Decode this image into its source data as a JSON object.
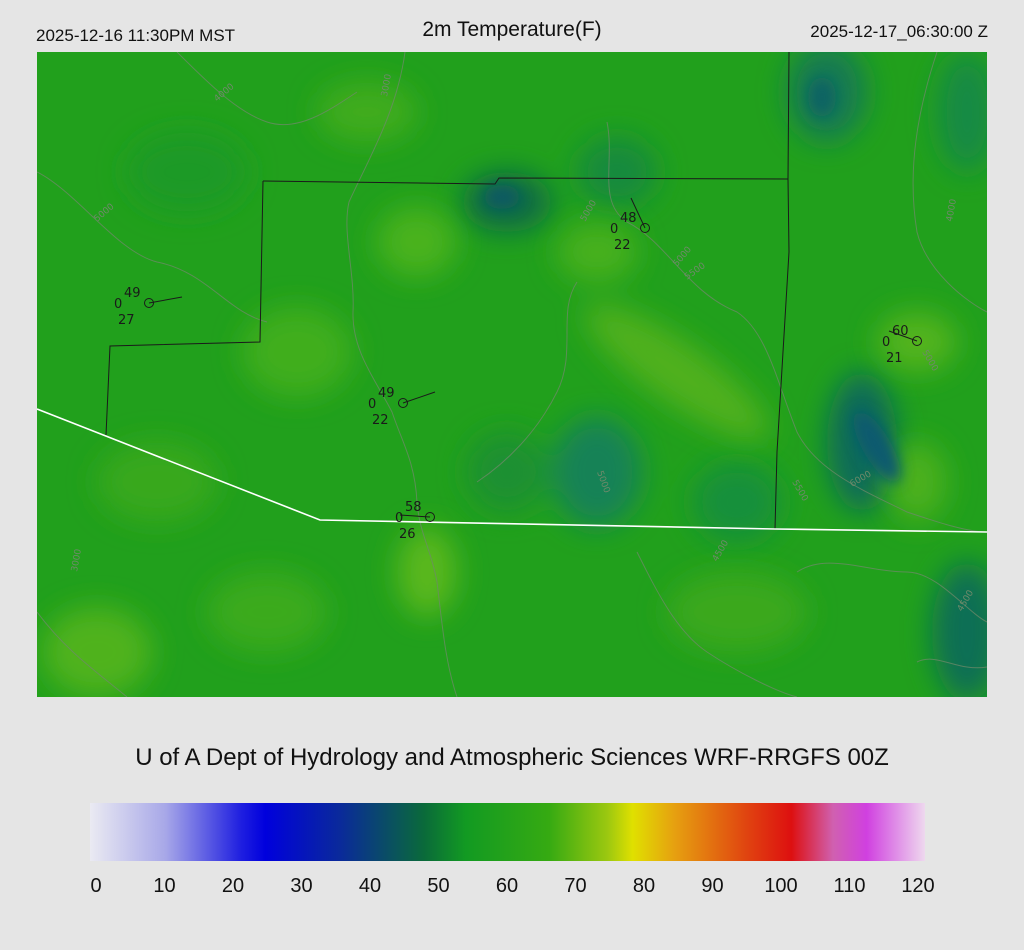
{
  "header": {
    "local_time": "2025-12-16 11:30PM MST",
    "title": "2m Temperature(F)",
    "utc_time": "2025-12-17_06:30:00 Z"
  },
  "credit": "U of A Dept of Hydrology and Atmospheric Sciences WRF-RRGFS 00Z",
  "colorbar": {
    "ticks": [
      "0",
      "10",
      "20",
      "30",
      "40",
      "50",
      "60",
      "70",
      "80",
      "90",
      "100",
      "110",
      "120"
    ],
    "min": 0,
    "max": 120
  },
  "stations": [
    {
      "temp": "49",
      "gust": "0",
      "dewpoint": "27"
    },
    {
      "temp": "48",
      "gust": "0",
      "dewpoint": "22"
    },
    {
      "temp": "60",
      "gust": "0",
      "dewpoint": "21"
    },
    {
      "temp": "49",
      "gust": "0",
      "dewpoint": "22"
    },
    {
      "temp": "58",
      "gust": "0",
      "dewpoint": "26"
    }
  ],
  "contour_labels": [
    "3000",
    "4000",
    "4500",
    "5000",
    "5500",
    "6000"
  ],
  "colors": {
    "background": "#e5e5e5",
    "field_base": "#21a01c",
    "border": "#1a1a1a",
    "state_line": "#ffffff"
  }
}
